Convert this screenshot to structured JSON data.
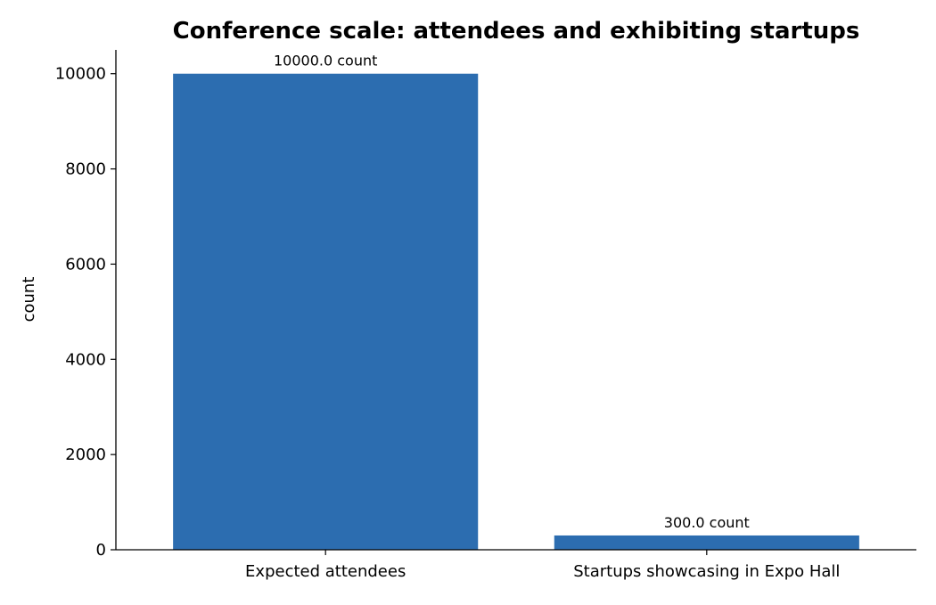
{
  "chart_data": {
    "type": "bar",
    "title": "Conference scale: attendees and exhibiting startups",
    "xlabel": "",
    "ylabel": "count",
    "categories": [
      "Expected attendees",
      "Startups showcasing in Expo Hall"
    ],
    "values": [
      10000,
      300
    ],
    "data_labels": [
      "10000.0 count",
      "300.0 count"
    ],
    "ylim": [
      0,
      10500
    ],
    "yticks": [
      0,
      2000,
      4000,
      6000,
      8000,
      10000
    ],
    "ytick_labels": [
      "0",
      "2000",
      "4000",
      "6000",
      "8000",
      "10000"
    ],
    "grid": false,
    "legend": "none",
    "bar_color": "#2c6db0"
  }
}
